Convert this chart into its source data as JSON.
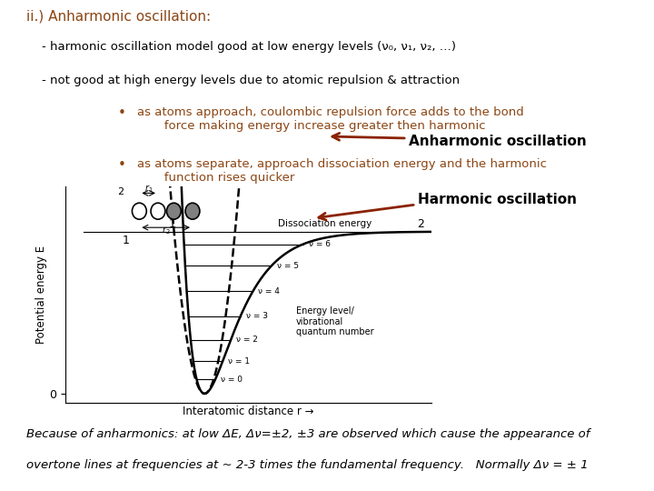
{
  "title_text": "ii.) Anharmonic oscillation:",
  "title_color": "#8B4513",
  "title_fontsize": 11,
  "line1": "    - harmonic oscillation model good at low energy levels (ν₀, ν₁, ν₂, …)",
  "line2": "    - not good at high energy levels due to atomic repulsion & attraction",
  "bullet1_label": "as atoms approach, coulombic repulsion force adds to the bond\n              force making energy increase greater then harmonic",
  "bullet2_label": "as atoms separate, approach dissociation energy and the harmonic\n              function rises quicker",
  "bullet_color": "#8B4513",
  "harmonic_label": "Harmonic oscillation",
  "anharmonic_label": "Anharmonic oscillation",
  "label_fontsize": 10,
  "xlabel": "Interatomic distance r →",
  "ylabel": "Potential energy E",
  "bottom_text1": "Because of anharmonics: at low ΔE, Δν=±2, ±3 are observed which cause the appearance of",
  "bottom_text2": "overtone lines at frequencies at ~ 2-3 times the fundamental frequency.   Normally Δν = ± 1",
  "bg_color": "#ffffff",
  "text_color": "#000000",
  "curve_color": "#000000",
  "energy_levels": [
    0.08,
    0.18,
    0.3,
    0.43,
    0.57,
    0.71,
    0.83
  ],
  "energy_labels": [
    "ν = 0",
    "ν = 1",
    "ν = 2",
    "ν = 3",
    "ν = 4",
    "ν = 5",
    "ν = 6"
  ]
}
